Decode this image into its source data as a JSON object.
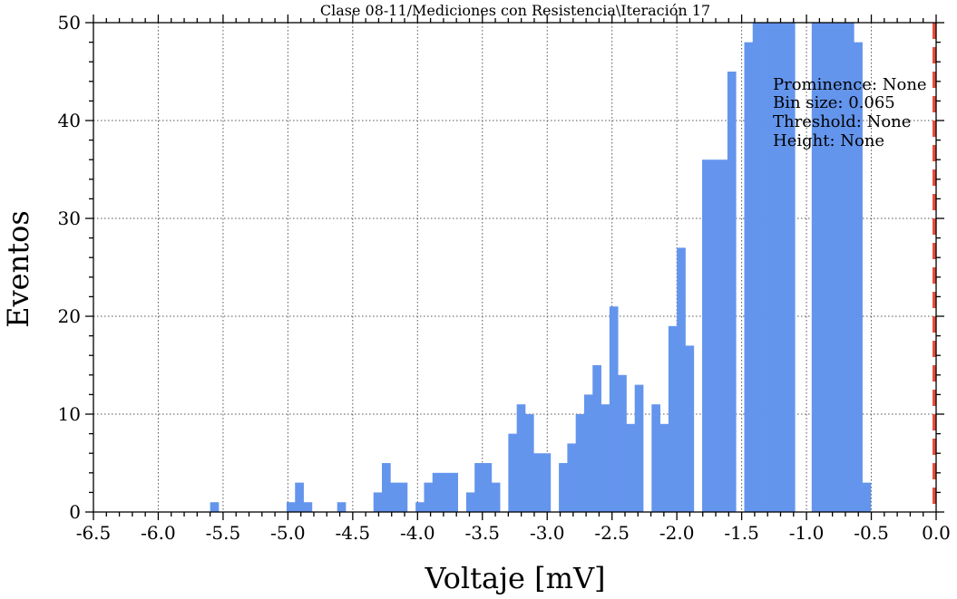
{
  "chart_data": {
    "type": "bar",
    "title": "Clase 08-11/Mediciones con Resistencia\\Iteración 17",
    "xlabel": "Voltaje [mV]",
    "ylabel": "Eventos",
    "xlim": [
      -6.5,
      0.0
    ],
    "ylim": [
      0,
      50
    ],
    "xticks": [
      "-6.5",
      "-6.0",
      "-5.5",
      "-5.0",
      "-4.5",
      "-4.0",
      "-3.5",
      "-3.0",
      "-2.5",
      "-2.0",
      "-1.5",
      "-1.0",
      "-0.5",
      "0.0"
    ],
    "yticks": [
      "0",
      "10",
      "20",
      "30",
      "40",
      "50"
    ],
    "grid": true,
    "bin_width": 0.065,
    "bar_color": "#6495ed",
    "bin_left_edges": [
      -5.6,
      -5.01,
      -4.945,
      -4.88,
      -4.62,
      -4.34,
      -4.275,
      -4.21,
      -4.145,
      -4.015,
      -3.95,
      -3.885,
      -3.82,
      -3.755,
      -3.625,
      -3.56,
      -3.495,
      -3.43,
      -3.3,
      -3.235,
      -3.17,
      -3.105,
      -3.04,
      -2.91,
      -2.845,
      -2.78,
      -2.715,
      -2.65,
      -2.585,
      -2.52,
      -2.455,
      -2.39,
      -2.325,
      -2.195,
      -2.13,
      -2.065,
      -2.0,
      -1.935,
      -1.805,
      -1.74,
      -1.675,
      -1.61,
      -1.48,
      -1.415,
      -1.35,
      -1.285,
      -1.22,
      -1.155,
      -0.96,
      -0.895,
      -0.83,
      -0.765,
      -0.7,
      -0.635,
      -0.57
    ],
    "counts": [
      1,
      1,
      3,
      1,
      1,
      2,
      5,
      3,
      3,
      1,
      3,
      4,
      4,
      4,
      2,
      5,
      5,
      3,
      8,
      11,
      10,
      6,
      6,
      5,
      7,
      10,
      12,
      15,
      11,
      21,
      14,
      9,
      13,
      11,
      9,
      19,
      27,
      17,
      36,
      36,
      36,
      45,
      48,
      53,
      53,
      53,
      53,
      53,
      53,
      53,
      53,
      53,
      53,
      48,
      3
    ],
    "threshold_line": {
      "x": 0.0,
      "color": "#e74c3c",
      "style": "dashed"
    },
    "annotation": [
      "Prominence: None",
      "Bin size: 0.065",
      "Threshold: None",
      "Height: None"
    ]
  }
}
